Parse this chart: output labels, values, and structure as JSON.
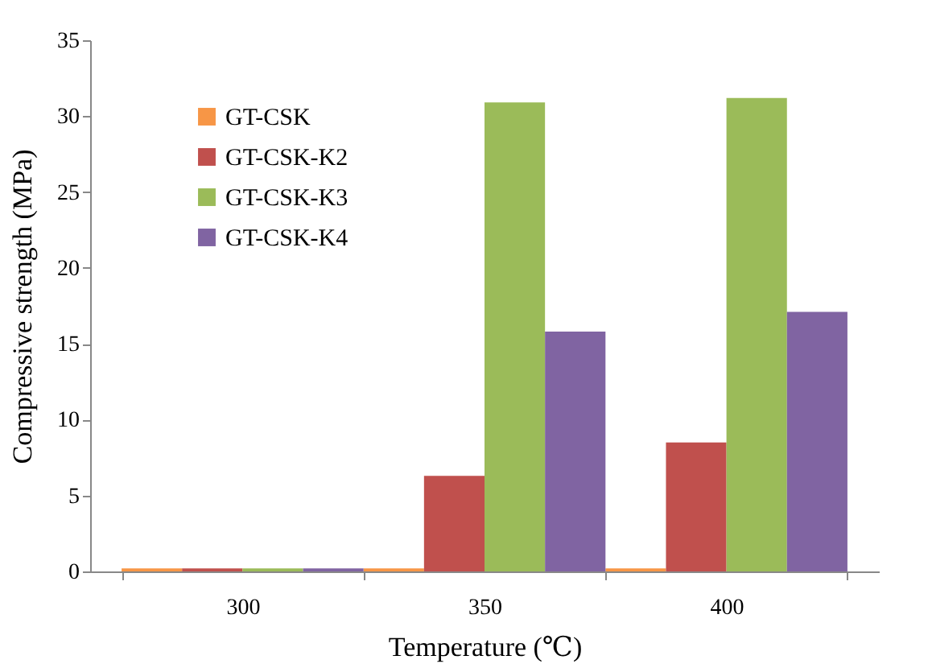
{
  "chart_data": {
    "type": "bar",
    "xlabel": "Temperature (℃)",
    "ylabel": "Compressive strength (MPa)",
    "categories": [
      "300",
      "350",
      "400"
    ],
    "series": [
      {
        "name": "GT-CSK",
        "color": "#f79646",
        "values": [
          0.2,
          0.2,
          0.2
        ]
      },
      {
        "name": "GT-CSK-K2",
        "color": "#c0504d",
        "values": [
          0.2,
          6.3,
          8.5
        ]
      },
      {
        "name": "GT-CSK-K3",
        "color": "#9bbb59",
        "values": [
          0.2,
          30.9,
          31.2
        ]
      },
      {
        "name": "GT-CSK-K4",
        "color": "#8064a2",
        "values": [
          0.2,
          15.8,
          17.1
        ]
      }
    ],
    "ylim": [
      0,
      35
    ],
    "yticks": [
      0,
      5,
      10,
      15,
      20,
      25,
      30,
      35
    ],
    "legend": "top left"
  }
}
